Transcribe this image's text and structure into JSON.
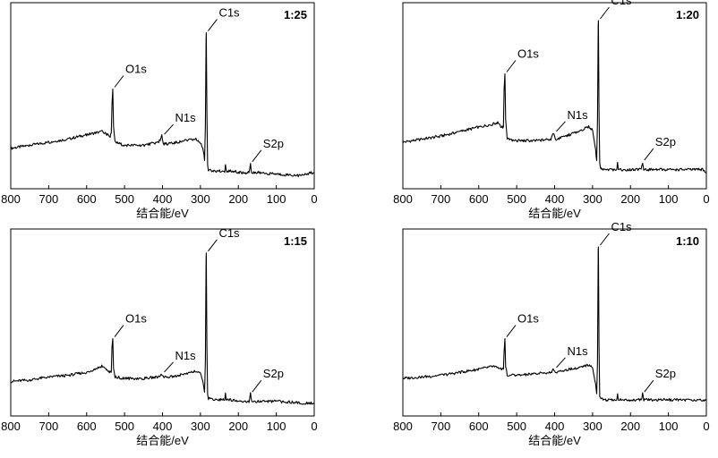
{
  "chart_data": [
    {
      "type": "line",
      "title": "1:25",
      "xlabel": "结合能/eV",
      "ylabel": "",
      "x_reversed": true,
      "xlim": [
        800,
        0
      ],
      "x_ticks": [
        800,
        700,
        600,
        500,
        400,
        300,
        200,
        100,
        0
      ],
      "y_ticks_shown": false,
      "grid": false,
      "series": [
        {
          "x": [
            800,
            750,
            700,
            650,
            600,
            560,
            545,
            538,
            535,
            533,
            531,
            529,
            525,
            500,
            450,
            410,
            402,
            398,
            380,
            340,
            310,
            300,
            292,
            289,
            287,
            285,
            284.5,
            283,
            281,
            279,
            276,
            270,
            250,
            236,
            234,
            232,
            215,
            190,
            172,
            168,
            165,
            150,
            100,
            30,
            10,
            0
          ],
          "y": [
            0.16,
            0.18,
            0.2,
            0.22,
            0.25,
            0.27,
            0.25,
            0.24,
            0.26,
            0.45,
            0.55,
            0.3,
            0.2,
            0.18,
            0.18,
            0.2,
            0.24,
            0.19,
            0.19,
            0.21,
            0.22,
            0.2,
            0.14,
            0.08,
            0.3,
            0.88,
            0.92,
            0.4,
            0.05,
            0.02,
            0.02,
            0.01,
            0.01,
            0.01,
            0.06,
            0.01,
            0.01,
            0.0,
            0.0,
            0.06,
            0.0,
            0.0,
            -0.01,
            -0.02,
            0.0,
            0.0
          ]
        }
      ],
      "annotations": [
        {
          "text": "O1s",
          "x": 531,
          "y": 0.55
        },
        {
          "text": "N1s",
          "x": 400,
          "y": 0.24
        },
        {
          "text": "C1s",
          "x": 284.5,
          "y": 0.92
        },
        {
          "text": "S2p",
          "x": 168,
          "y": 0.06
        }
      ]
    },
    {
      "type": "line",
      "title": "1:20",
      "xlabel": "结合能/eV",
      "ylabel": "",
      "x_reversed": true,
      "xlim": [
        800,
        0
      ],
      "x_ticks": [
        800,
        700,
        600,
        500,
        400,
        300,
        200,
        100,
        0
      ],
      "y_ticks_shown": false,
      "grid": false,
      "series": [
        {
          "x": [
            800,
            750,
            700,
            650,
            600,
            560,
            550,
            540,
            535,
            533,
            531,
            529,
            525,
            500,
            450,
            410,
            402,
            398,
            380,
            340,
            310,
            300,
            292,
            289,
            287,
            285,
            284.5,
            283,
            281,
            279,
            276,
            270,
            250,
            236,
            234,
            232,
            215,
            190,
            172,
            168,
            165,
            150,
            100,
            30,
            10,
            0
          ],
          "y": [
            0.2,
            0.22,
            0.24,
            0.27,
            0.3,
            0.32,
            0.33,
            0.3,
            0.3,
            0.55,
            0.65,
            0.35,
            0.22,
            0.21,
            0.21,
            0.22,
            0.26,
            0.22,
            0.23,
            0.27,
            0.3,
            0.28,
            0.15,
            0.08,
            0.35,
            0.98,
            1.0,
            0.4,
            0.06,
            0.03,
            0.03,
            0.02,
            0.02,
            0.02,
            0.06,
            0.02,
            0.02,
            0.02,
            0.02,
            0.07,
            0.02,
            0.02,
            0.02,
            0.02,
            0.02,
            0.0
          ]
        }
      ],
      "annotations": [
        {
          "text": "O1s",
          "x": 531,
          "y": 0.65
        },
        {
          "text": "N1s",
          "x": 400,
          "y": 0.26
        },
        {
          "text": "C1s",
          "x": 284.5,
          "y": 1.0
        },
        {
          "text": "S2p",
          "x": 168,
          "y": 0.07
        }
      ]
    },
    {
      "type": "line",
      "title": "1:15",
      "xlabel": "结合能/eV",
      "ylabel": "",
      "x_reversed": true,
      "xlim": [
        800,
        0
      ],
      "x_ticks": [
        800,
        700,
        600,
        500,
        400,
        300,
        200,
        100,
        0
      ],
      "y_ticks_shown": false,
      "grid": false,
      "series": [
        {
          "x": [
            800,
            750,
            700,
            650,
            600,
            560,
            548,
            540,
            535,
            533,
            531,
            529,
            525,
            500,
            450,
            410,
            402,
            398,
            380,
            340,
            310,
            300,
            292,
            289,
            287,
            285,
            284.5,
            283,
            281,
            279,
            276,
            270,
            250,
            236,
            234,
            232,
            215,
            190,
            172,
            168,
            165,
            150,
            100,
            30,
            10,
            0
          ],
          "y": [
            0.12,
            0.13,
            0.15,
            0.16,
            0.18,
            0.22,
            0.2,
            0.18,
            0.18,
            0.34,
            0.4,
            0.2,
            0.15,
            0.14,
            0.14,
            0.15,
            0.17,
            0.15,
            0.15,
            0.17,
            0.19,
            0.17,
            0.1,
            0.05,
            0.25,
            0.92,
            0.96,
            0.35,
            0.03,
            0.01,
            0.01,
            0.0,
            0.0,
            0.0,
            0.04,
            0.0,
            0.0,
            -0.01,
            -0.01,
            0.04,
            -0.01,
            -0.01,
            -0.01,
            -0.02,
            -0.02,
            -0.02
          ]
        }
      ],
      "annotations": [
        {
          "text": "O1s",
          "x": 531,
          "y": 0.4
        },
        {
          "text": "N1s",
          "x": 400,
          "y": 0.17
        },
        {
          "text": "C1s",
          "x": 284.5,
          "y": 0.96
        },
        {
          "text": "S2p",
          "x": 168,
          "y": 0.04
        }
      ]
    },
    {
      "type": "line",
      "title": "1:10",
      "xlabel": "结合能/eV",
      "ylabel": "",
      "x_reversed": true,
      "xlim": [
        800,
        0
      ],
      "x_ticks": [
        800,
        700,
        600,
        500,
        400,
        300,
        200,
        100,
        0
      ],
      "y_ticks_shown": false,
      "grid": false,
      "series": [
        {
          "x": [
            800,
            750,
            700,
            650,
            600,
            560,
            550,
            540,
            535,
            533,
            531,
            529,
            525,
            500,
            450,
            410,
            402,
            398,
            380,
            340,
            310,
            300,
            292,
            289,
            287,
            285,
            284.5,
            283,
            281,
            279,
            276,
            270,
            250,
            236,
            234,
            232,
            215,
            190,
            172,
            168,
            165,
            150,
            100,
            30,
            10,
            0
          ],
          "y": [
            0.14,
            0.15,
            0.16,
            0.18,
            0.2,
            0.22,
            0.21,
            0.2,
            0.2,
            0.32,
            0.4,
            0.22,
            0.16,
            0.16,
            0.17,
            0.18,
            0.2,
            0.18,
            0.19,
            0.21,
            0.23,
            0.21,
            0.1,
            0.04,
            0.25,
            0.98,
            1.0,
            0.35,
            0.03,
            0.01,
            0.01,
            0.0,
            0.0,
            0.0,
            0.04,
            0.0,
            0.0,
            0.0,
            0.0,
            0.04,
            0.0,
            0.0,
            0.0,
            0.0,
            0.0,
            0.0
          ]
        }
      ],
      "annotations": [
        {
          "text": "O1s",
          "x": 531,
          "y": 0.4
        },
        {
          "text": "N1s",
          "x": 400,
          "y": 0.2
        },
        {
          "text": "C1s",
          "x": 284.5,
          "y": 1.0
        },
        {
          "text": "S2p",
          "x": 168,
          "y": 0.04
        }
      ]
    }
  ]
}
